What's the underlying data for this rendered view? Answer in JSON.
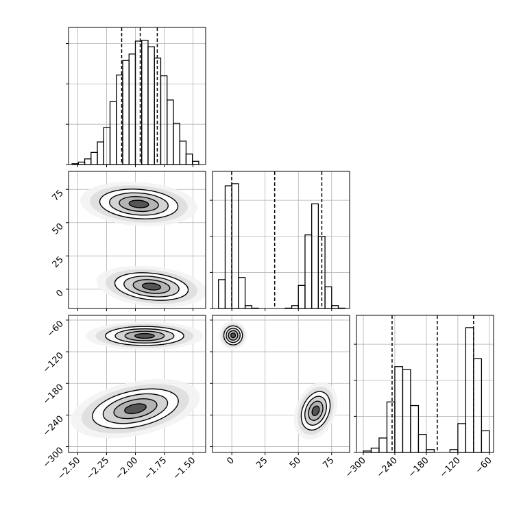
{
  "chart_data": {
    "type": "corner",
    "grid": true,
    "color": "#000000",
    "params": [
      {
        "xlim": [
          -2.58,
          -1.39
        ],
        "xticks": [
          {
            "value": -2.5,
            "label": "−2.50"
          },
          {
            "value": -2.25,
            "label": "−2.25"
          },
          {
            "value": -2.0,
            "label": "−2.00"
          },
          {
            "value": -1.75,
            "label": "−1.75"
          },
          {
            "value": -1.5,
            "label": "−1.50"
          }
        ],
        "hist": {
          "bins": [
            -2.55,
            -2.495,
            -2.44,
            -2.385,
            -2.33,
            -2.275,
            -2.22,
            -2.165,
            -2.11,
            -2.055,
            -2.0,
            -1.945,
            -1.89,
            -1.835,
            -1.78,
            -1.725,
            -1.67,
            -1.615,
            -1.56,
            -1.505,
            -1.45
          ],
          "values": [
            10,
            30,
            70,
            150,
            280,
            460,
            780,
            1110,
            1290,
            1370,
            1530,
            1540,
            1460,
            1320,
            1100,
            800,
            510,
            290,
            130,
            40
          ],
          "ylim": [
            0,
            1700
          ],
          "yticks": [
            0,
            500,
            1000,
            1500
          ]
        },
        "quantiles": [
          -2.119,
          -1.958,
          -1.81
        ]
      },
      {
        "xlim": [
          -14.5,
          88.5
        ],
        "xticks": [
          0,
          25,
          50,
          75
        ],
        "yticks": [
          0,
          25,
          50,
          75
        ],
        "hist": {
          "bins": [
            -10,
            -5,
            0,
            5,
            10,
            15,
            20,
            25,
            30,
            35,
            40,
            45,
            50,
            55,
            60,
            65,
            70,
            75,
            80,
            85
          ],
          "values": [
            400,
            1700,
            1730,
            430,
            40,
            5,
            0,
            0,
            0,
            0,
            5,
            40,
            320,
            1020,
            1450,
            1000,
            300,
            40,
            5
          ],
          "ylim": [
            0,
            1900
          ],
          "yticks": [
            0,
            500,
            1000,
            1500
          ]
        },
        "quantiles": [
          -0.1,
          32.2,
          67.6
        ]
      },
      {
        "xlim": [
          -313,
          -52
        ],
        "xticks": [
          {
            "value": -300,
            "label": "−300"
          },
          {
            "value": -240,
            "label": "−240"
          },
          {
            "value": -180,
            "label": "−180"
          },
          {
            "value": -120,
            "label": "−120"
          },
          {
            "value": -60,
            "label": "−60"
          }
        ],
        "yticks": [
          {
            "value": -60,
            "label": "−60"
          },
          {
            "value": -120,
            "label": "−120"
          },
          {
            "value": -180,
            "label": "−180"
          },
          {
            "value": -240,
            "label": "−240"
          },
          {
            "value": -300,
            "label": "−300"
          }
        ],
        "ylim": [
          -311,
          -51
        ],
        "hist": {
          "bins": [
            -300,
            -285,
            -270,
            -255,
            -240,
            -225,
            -210,
            -195,
            -180,
            -165,
            -150,
            -135,
            -120,
            -105,
            -90,
            -75,
            -60
          ],
          "values": [
            20,
            60,
            200,
            700,
            1190,
            1150,
            650,
            250,
            40,
            0,
            0,
            40,
            400,
            1730,
            1300,
            300
          ],
          "ylim": [
            0,
            1900
          ],
          "yticks": [
            0,
            500,
            1000,
            1500
          ]
        },
        "quantiles": [
          -245.2,
          -159.2,
          -90.1
        ]
      }
    ],
    "pairs": [
      {
        "x_param": 0,
        "y_param": 1,
        "clusters": [
          {
            "x": -1.97,
            "y": 64,
            "sx": 0.17,
            "sy": 5.5,
            "rho": -0.1
          },
          {
            "x": -1.86,
            "y": 2,
            "sx": 0.16,
            "sy": 5,
            "rho": -0.15
          }
        ]
      },
      {
        "x_param": 0,
        "y_param": 2,
        "clusters": [
          {
            "x": -1.92,
            "y": -90,
            "sx": 0.17,
            "sy": 9,
            "rho": 0
          },
          {
            "x": -2.0,
            "y": -228,
            "sx": 0.19,
            "sy": 17,
            "rho": 0.3
          }
        ]
      },
      {
        "x_param": 1,
        "y_param": 2,
        "clusters": [
          {
            "x": 1,
            "y": -89,
            "sx": 3.5,
            "sy": 9,
            "rho": -0.2
          },
          {
            "x": 63,
            "y": -232,
            "sx": 5,
            "sy": 19,
            "rho": -0.55
          }
        ]
      }
    ]
  }
}
